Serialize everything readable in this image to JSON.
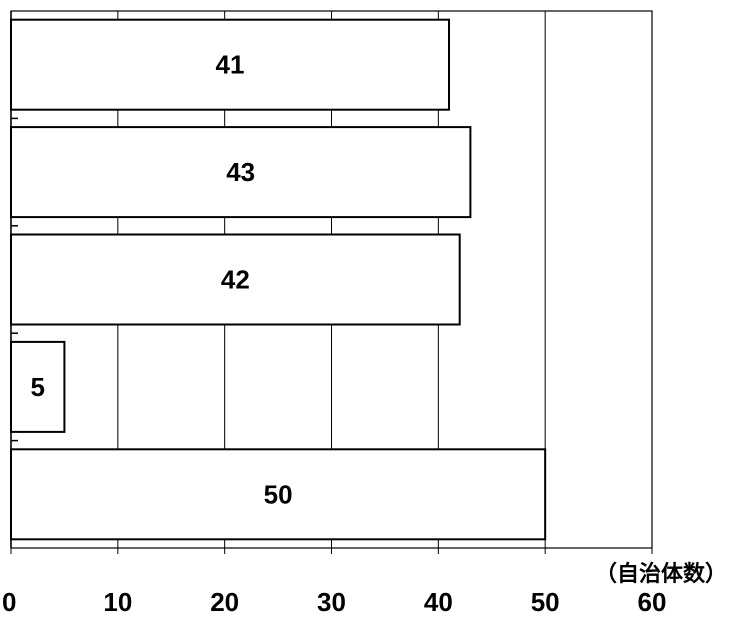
{
  "chart_data": {
    "type": "bar",
    "orientation": "horizontal",
    "categories": [
      "",
      "",
      "",
      "",
      ""
    ],
    "values": [
      41,
      43,
      42,
      5,
      50
    ],
    "data_labels": [
      "41",
      "43",
      "42",
      "5",
      "50"
    ],
    "x_unit_label": "（自治体数）",
    "xlim": [
      0,
      60
    ],
    "x_ticks": [
      0,
      10,
      20,
      30,
      40,
      50,
      60
    ],
    "x_tick_labels": [
      "0",
      "10",
      "20",
      "30",
      "40",
      "50",
      "60"
    ],
    "grid": "vertical",
    "legend": "none",
    "colors": {
      "bar_fill": "#ffffff",
      "bar_stroke": "#000000",
      "grid": "#000000",
      "background": "#ffffff"
    }
  }
}
